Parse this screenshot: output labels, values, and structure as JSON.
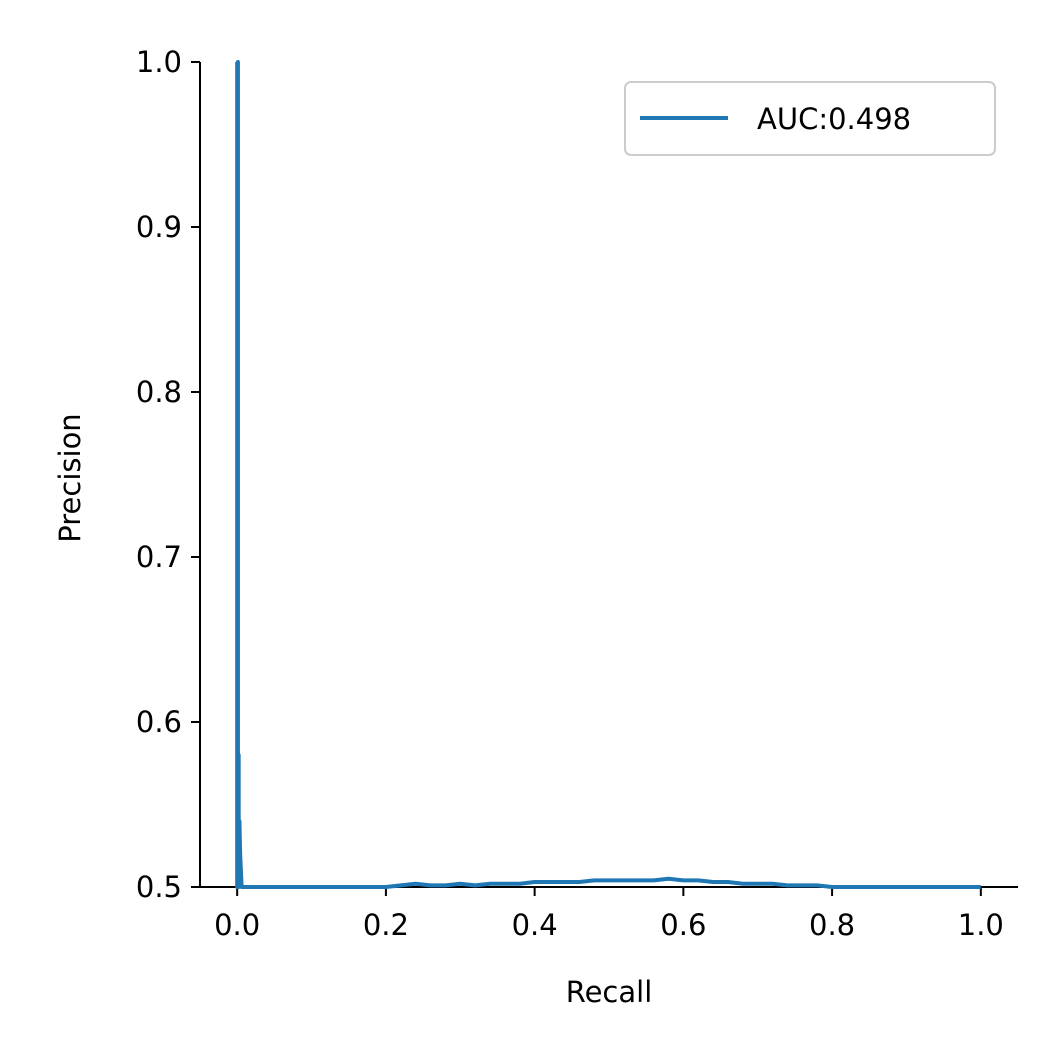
{
  "chart_data": {
    "type": "line",
    "title": "",
    "xlabel": "Recall",
    "ylabel": "Precision",
    "xlim": [
      -0.05,
      1.05
    ],
    "ylim": [
      0.5,
      1.0
    ],
    "xticks": [
      "0.0",
      "0.2",
      "0.4",
      "0.6",
      "0.8",
      "1.0"
    ],
    "yticks": [
      "0.5",
      "0.6",
      "0.7",
      "0.8",
      "0.9",
      "1.0"
    ],
    "grid": false,
    "legend_position": "top-right",
    "series": [
      {
        "name": "AUC:0.498",
        "color": "#1f77b4",
        "x": [
          0.0,
          0.0,
          0.001,
          0.001,
          0.002,
          0.002,
          0.003,
          0.004,
          0.005,
          0.006,
          0.2,
          0.22,
          0.24,
          0.26,
          0.28,
          0.3,
          0.32,
          0.34,
          0.36,
          0.38,
          0.4,
          0.42,
          0.44,
          0.46,
          0.48,
          0.5,
          0.52,
          0.54,
          0.56,
          0.58,
          0.6,
          0.62,
          0.64,
          0.66,
          0.68,
          0.7,
          0.72,
          0.74,
          0.76,
          0.78,
          0.8,
          0.85,
          0.9,
          0.95,
          1.0
        ],
        "y": [
          1.0,
          0.5,
          1.0,
          0.5,
          0.58,
          0.5,
          0.54,
          0.52,
          0.51,
          0.5,
          0.5,
          0.501,
          0.502,
          0.501,
          0.501,
          0.502,
          0.501,
          0.502,
          0.502,
          0.502,
          0.503,
          0.503,
          0.503,
          0.503,
          0.504,
          0.504,
          0.504,
          0.504,
          0.504,
          0.505,
          0.504,
          0.504,
          0.503,
          0.503,
          0.502,
          0.502,
          0.502,
          0.501,
          0.501,
          0.501,
          0.5,
          0.5,
          0.5,
          0.5,
          0.5
        ]
      }
    ]
  }
}
